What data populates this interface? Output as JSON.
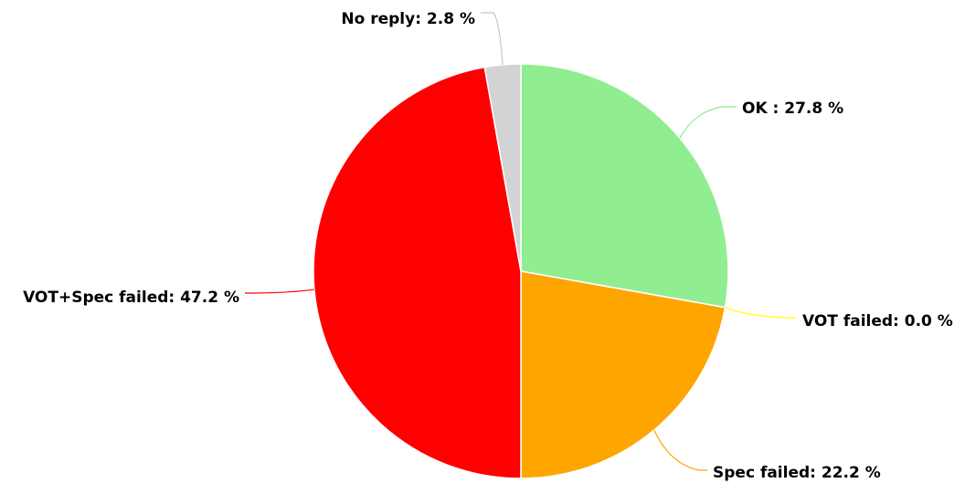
{
  "chart_data": {
    "type": "pie",
    "slices": [
      {
        "label": "OK",
        "separator": " : ",
        "value": 27.8,
        "color": "#90ee90"
      },
      {
        "label": "VOT failed",
        "separator": ": ",
        "value": 0.0,
        "color": "#ffff00"
      },
      {
        "label": "Spec failed",
        "separator": ": ",
        "value": 22.2,
        "color": "#ffa500"
      },
      {
        "label": "VOT+Spec failed",
        "separator": ": ",
        "value": 47.2,
        "color": "#ff0000"
      },
      {
        "label": "No reply",
        "separator": ": ",
        "value": 2.8,
        "color": "#d3d3d3"
      }
    ],
    "value_suffix": " %",
    "start_angle": "12 o'clock",
    "direction": "clockwise"
  }
}
